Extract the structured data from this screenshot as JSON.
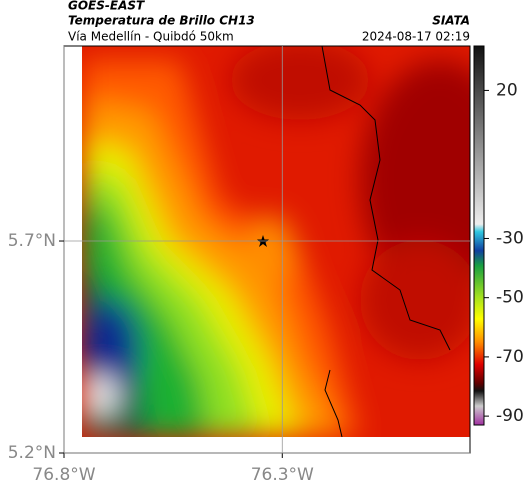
{
  "header": {
    "source": "GOES-EAST",
    "title": "Temperatura de Brillo CH13",
    "subtitle": "Vía Medellín - Quibdó 50km",
    "brand": "SIATA",
    "timestamp": "2024-08-17 02:19"
  },
  "map": {
    "xlim": [
      -76.8,
      -75.87
    ],
    "ylim": [
      5.2,
      6.16
    ],
    "xticks": [
      {
        "value": -76.8,
        "label": "76.8°W"
      },
      {
        "value": -76.3,
        "label": "76.3°W"
      }
    ],
    "yticks": [
      {
        "value": 5.2,
        "label": "5.2°N"
      },
      {
        "value": 5.7,
        "label": "5.7°N"
      }
    ]
  },
  "colorbar": {
    "clim": [
      -93,
      35
    ],
    "ticks": [
      20,
      -30,
      -50,
      -70,
      -90
    ]
  }
}
